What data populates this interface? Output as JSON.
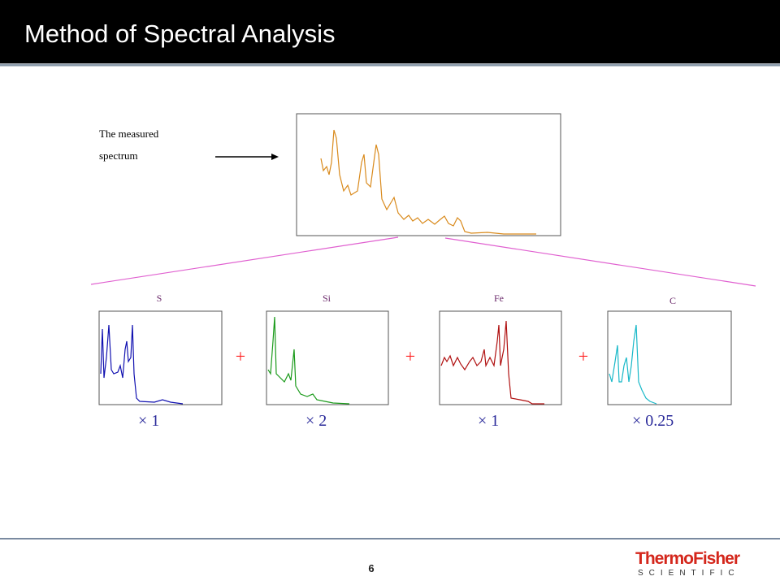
{
  "header": {
    "title": "Method of Spectral Analysis"
  },
  "measured": {
    "label_line1": "The measured",
    "label_line2": "spectrum"
  },
  "components": [
    {
      "element": "S",
      "factor": "× 1"
    },
    {
      "element": "Si",
      "factor": "× 2"
    },
    {
      "element": "Fe",
      "factor": "× 1"
    },
    {
      "element": "C",
      "factor": "× 0.25"
    }
  ],
  "operators": [
    "+",
    "+",
    "+"
  ],
  "footer": {
    "page": "6",
    "brand": "ThermoFisher",
    "sub": "SCIENTIFIC"
  }
}
